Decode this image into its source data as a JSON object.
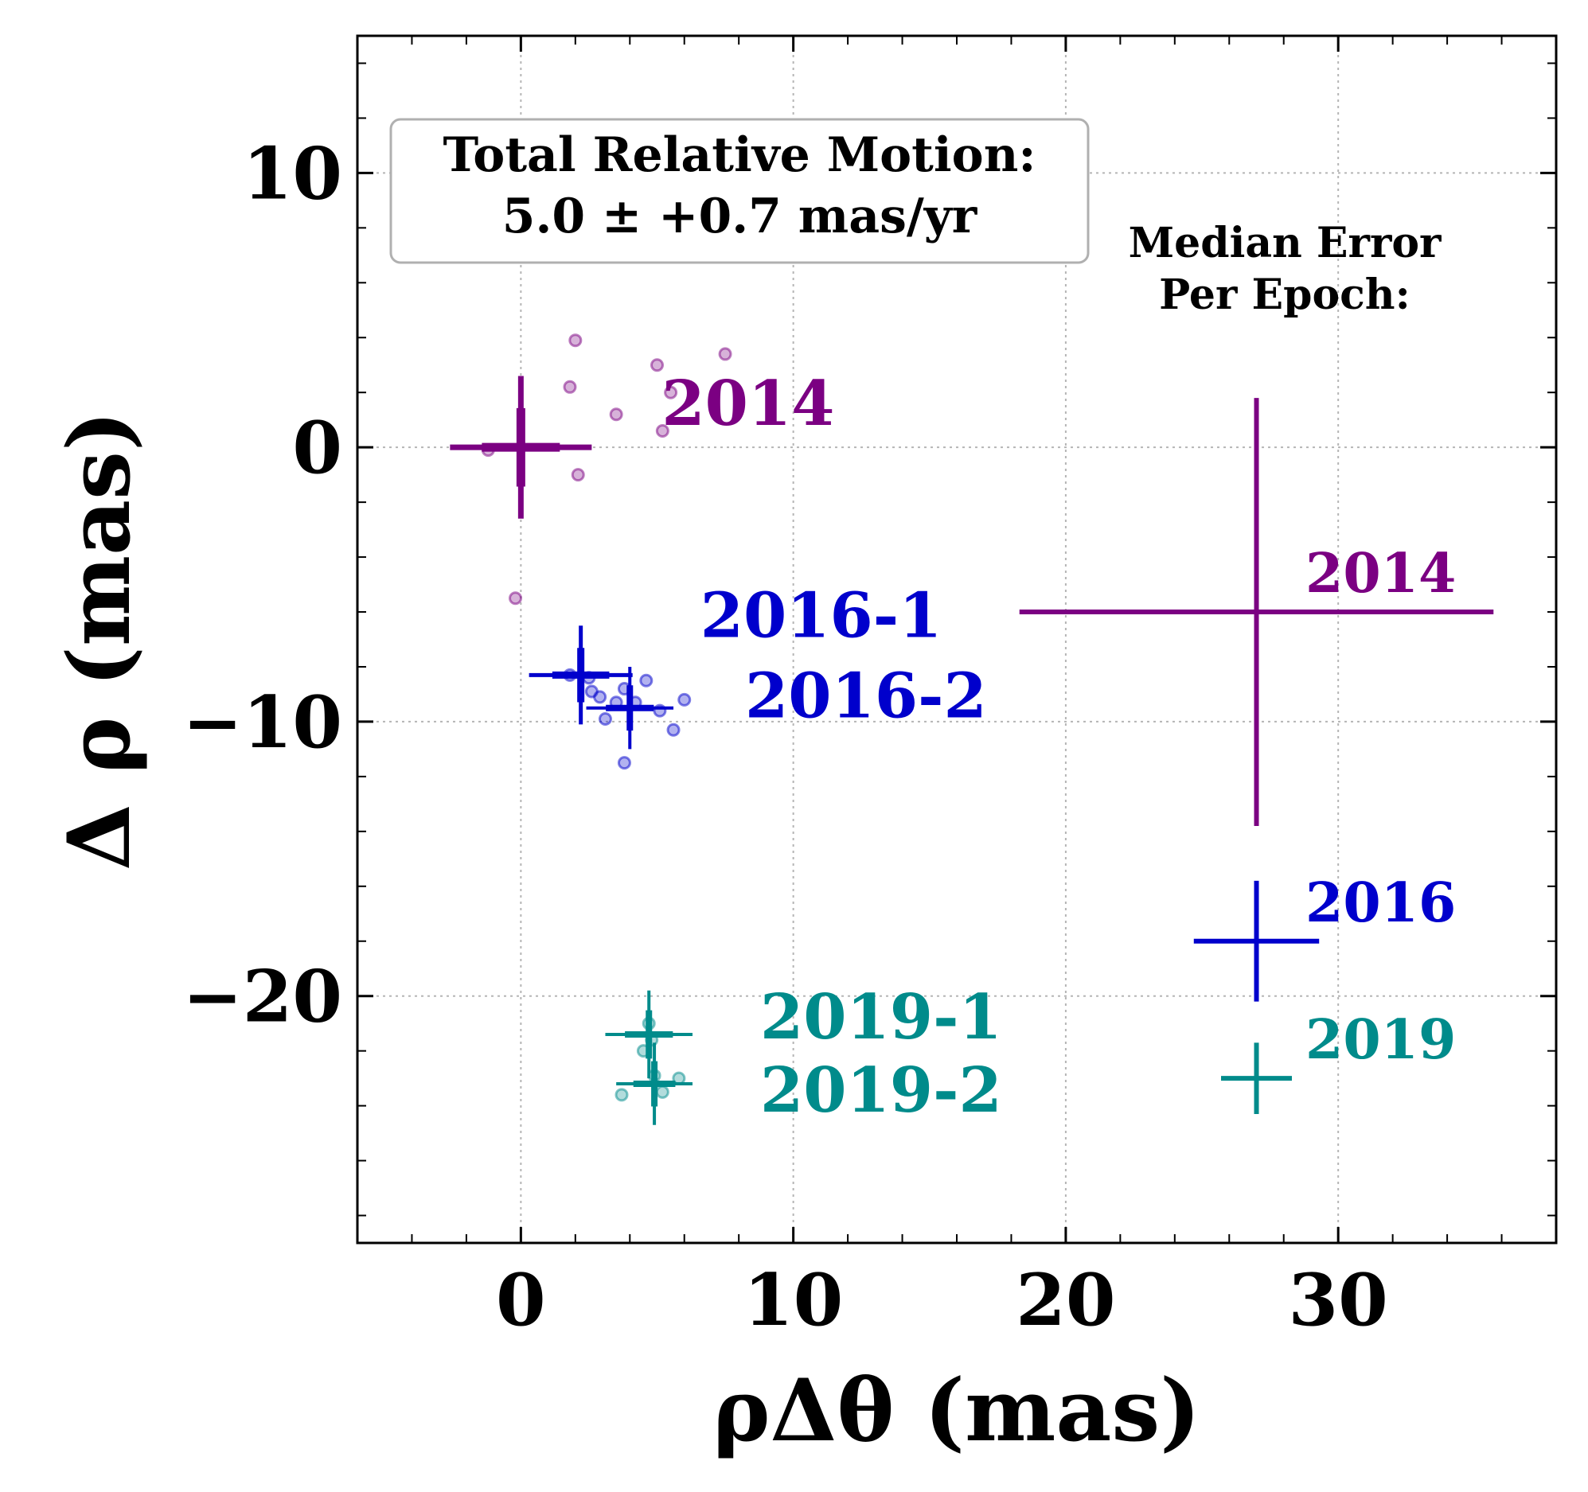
{
  "chart_data": {
    "type": "scatter",
    "xlabel": "ρΔθ (mas)",
    "ylabel": "Δ ρ (mas)",
    "xlim": [
      -6,
      38
    ],
    "ylim": [
      -29,
      15
    ],
    "x_ticks": [
      0,
      10,
      20,
      30
    ],
    "y_ticks": [
      10,
      0,
      -10,
      -20
    ],
    "x_tick_labels": [
      "0",
      "10",
      "20",
      "30"
    ],
    "y_tick_labels": [
      "10",
      "0",
      "−10",
      "−20"
    ],
    "grid": true,
    "colors": {
      "2014": "#7b0082",
      "2016": "#0000cc",
      "2019": "#008b8b"
    },
    "summary_box": {
      "line1": "Total Relative Motion:",
      "line2": "5.0 ± +0.7 mas/yr"
    },
    "median_error_title": {
      "line1": "Median Error",
      "line2": "Per Epoch:"
    },
    "series": [
      {
        "name": "2014",
        "color_key": "2014",
        "points": [
          [
            2.0,
            3.9
          ],
          [
            1.8,
            2.2
          ],
          [
            5.0,
            3.0
          ],
          [
            5.5,
            2.0
          ],
          [
            7.5,
            3.4
          ],
          [
            3.5,
            1.2
          ],
          [
            5.2,
            0.6
          ],
          [
            -1.2,
            -0.1
          ],
          [
            2.1,
            -1.0
          ],
          [
            -0.2,
            -5.5
          ]
        ],
        "mean": {
          "x": 0.0,
          "y": 0.0,
          "xerr": 2.6,
          "yerr": 2.6,
          "label": "2014"
        }
      },
      {
        "name": "2016-1",
        "color_key": "2016",
        "points": [
          [
            1.8,
            -8.3
          ],
          [
            2.5,
            -8.4
          ],
          [
            2.6,
            -8.9
          ],
          [
            3.5,
            -9.3
          ],
          [
            2.9,
            -9.1
          ],
          [
            3.1,
            -9.9
          ],
          [
            3.8,
            -8.8
          ]
        ],
        "mean": {
          "x": 2.2,
          "y": -8.3,
          "xerr": 1.9,
          "yerr": 1.8,
          "label": "2016-1"
        }
      },
      {
        "name": "2016-2",
        "color_key": "2016",
        "points": [
          [
            4.6,
            -8.5
          ],
          [
            5.1,
            -9.6
          ],
          [
            6.0,
            -9.2
          ],
          [
            5.6,
            -10.3
          ],
          [
            3.8,
            -11.5
          ],
          [
            4.2,
            -9.3
          ]
        ],
        "mean": {
          "x": 4.0,
          "y": -9.5,
          "xerr": 1.6,
          "yerr": 1.5,
          "label": "2016-2"
        }
      },
      {
        "name": "2019-1",
        "color_key": "2019",
        "points": [
          [
            4.7,
            -21.0
          ],
          [
            4.5,
            -22.0
          ],
          [
            4.8,
            -21.6
          ]
        ],
        "mean": {
          "x": 4.7,
          "y": -21.4,
          "xerr": 1.6,
          "yerr": 1.6,
          "label": "2019-1"
        }
      },
      {
        "name": "2019-2",
        "color_key": "2019",
        "points": [
          [
            3.7,
            -23.6
          ],
          [
            5.8,
            -23.0
          ],
          [
            5.2,
            -23.5
          ],
          [
            4.9,
            -22.9
          ]
        ],
        "mean": {
          "x": 4.9,
          "y": -23.2,
          "xerr": 1.4,
          "yerr": 1.5,
          "label": "2019-2"
        }
      }
    ],
    "median_errors": [
      {
        "label": "2014",
        "color_key": "2014",
        "x": 27.0,
        "y": -6.0,
        "xerr": 8.7,
        "yerr": 7.8
      },
      {
        "label": "2016",
        "color_key": "2016",
        "x": 27.0,
        "y": -18.0,
        "xerr": 2.3,
        "yerr": 2.2
      },
      {
        "label": "2019",
        "color_key": "2019",
        "x": 27.0,
        "y": -23.0,
        "xerr": 1.3,
        "yerr": 1.3
      }
    ]
  }
}
